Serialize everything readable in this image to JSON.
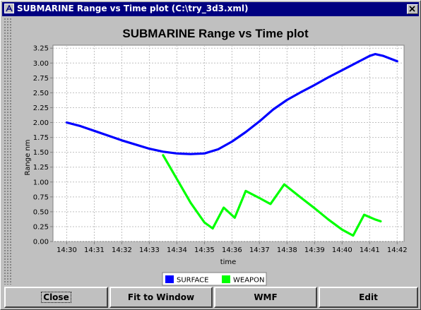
{
  "window": {
    "title": "SUBMARINE Range vs Time plot (C:\\try_3d3.xml)"
  },
  "chart_data": {
    "type": "line",
    "title": "SUBMARINE Range vs Time plot",
    "xlabel": "time",
    "ylabel": "Range nm",
    "x_ticks": [
      "14:30",
      "14:31",
      "14:32",
      "14:33",
      "14:34",
      "14:35",
      "14:36",
      "14:37",
      "14:38",
      "14:39",
      "14:40",
      "14:41",
      "14:42"
    ],
    "y_ticks": [
      "0.00",
      "0.25",
      "0.50",
      "0.75",
      "1.00",
      "1.25",
      "1.50",
      "1.75",
      "2.00",
      "2.25",
      "2.50",
      "2.75",
      "3.00",
      "3.25"
    ],
    "xlim": [
      "14:29.5",
      "14:42.25"
    ],
    "ylim": [
      0,
      3.3
    ],
    "grid": true,
    "legend_position": "bottom",
    "series": [
      {
        "name": "SURFACE",
        "color": "#0000ff",
        "points": [
          [
            "14:30.0",
            2.0
          ],
          [
            "14:30.5",
            1.94
          ],
          [
            "14:31.0",
            1.86
          ],
          [
            "14:31.5",
            1.78
          ],
          [
            "14:32.0",
            1.7
          ],
          [
            "14:32.5",
            1.63
          ],
          [
            "14:33.0",
            1.56
          ],
          [
            "14:33.5",
            1.51
          ],
          [
            "14:34.0",
            1.48
          ],
          [
            "14:34.5",
            1.47
          ],
          [
            "14:35.0",
            1.48
          ],
          [
            "14:35.5",
            1.55
          ],
          [
            "14:36.0",
            1.68
          ],
          [
            "14:36.5",
            1.84
          ],
          [
            "14:37.0",
            2.02
          ],
          [
            "14:37.5",
            2.22
          ],
          [
            "14:38.0",
            2.38
          ],
          [
            "14:38.5",
            2.51
          ],
          [
            "14:39.0",
            2.63
          ],
          [
            "14:39.5",
            2.76
          ],
          [
            "14:40.0",
            2.88
          ],
          [
            "14:40.5",
            3.0
          ],
          [
            "14:41.0",
            3.12
          ],
          [
            "14:41.2",
            3.15
          ],
          [
            "14:41.5",
            3.12
          ],
          [
            "14:42.0",
            3.03
          ]
        ]
      },
      {
        "name": "WEAPON",
        "color": "#00ff00",
        "points": [
          [
            "14:33.5",
            1.45
          ],
          [
            "14:34.0",
            1.05
          ],
          [
            "14:34.5",
            0.65
          ],
          [
            "14:35.0",
            0.32
          ],
          [
            "14:35.3",
            0.22
          ],
          [
            "14:35.7",
            0.57
          ],
          [
            "14:36.1",
            0.4
          ],
          [
            "14:36.5",
            0.85
          ],
          [
            "14:37.0",
            0.73
          ],
          [
            "14:37.4",
            0.63
          ],
          [
            "14:37.9",
            0.96
          ],
          [
            "14:38.5",
            0.74
          ],
          [
            "14:39.0",
            0.56
          ],
          [
            "14:39.5",
            0.37
          ],
          [
            "14:40.0",
            0.2
          ],
          [
            "14:40.4",
            0.1
          ],
          [
            "14:40.8",
            0.45
          ],
          [
            "14:41.2",
            0.37
          ],
          [
            "14:41.4",
            0.34
          ]
        ]
      }
    ]
  },
  "buttons": {
    "close": "Close",
    "fit": "Fit to Window",
    "wmf": "WMF",
    "edit": "Edit"
  },
  "icons": {
    "window": "app-icon",
    "close": "close-icon"
  }
}
